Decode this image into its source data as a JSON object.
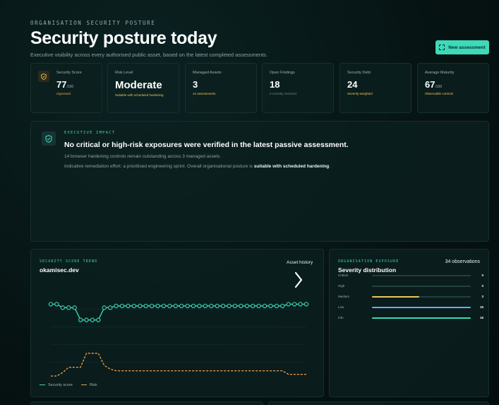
{
  "header": {
    "eyebrow": "ORGANISATION SECURITY POSTURE",
    "title": "Security posture today",
    "subtitle": "Executive visibility across every authorised public asset, based on the latest completed assessments.",
    "new_assessment_label": "New assessment"
  },
  "stats": [
    {
      "label": "Security Score",
      "value": "77",
      "unit": "/100",
      "note": "regressed"
    },
    {
      "label": "Risk Level",
      "value": "Moderate",
      "unit": "",
      "note": "Suitable with scheduled hardening"
    },
    {
      "label": "Managed Assets",
      "value": "3",
      "unit": "",
      "note": "42 assessments"
    },
    {
      "label": "Open Findings",
      "value": "18",
      "unit": "",
      "note": "0 recently resolved"
    },
    {
      "label": "Security Debt",
      "value": "24",
      "unit": "",
      "note": "Severity-weighted"
    },
    {
      "label": "Average Maturity",
      "value": "67",
      "unit": "/100",
      "note": "Observable controls"
    }
  ],
  "impact": {
    "eyebrow": "EXECUTIVE IMPACT",
    "headline": "No critical or high-risk exposures were verified in the latest passive assessment.",
    "line1": "14 browser hardening controls remain outstanding across 3 managed assets.",
    "line2_prefix": "Indicative remediation effort: a prioritised engineering sprint. Overall organisational posture is ",
    "line2_bold": "suitable with scheduled hardening",
    "line2_suffix": "."
  },
  "trend": {
    "eyebrow": "SECURITY SCORE TREND",
    "asset": "okamisec.dev",
    "history_label": "Asset history",
    "legend_score": "Security score",
    "legend_risk": "Risk"
  },
  "chart_data": {
    "type": "line",
    "title": "",
    "xlabel": "",
    "ylabel": "",
    "ylim": [
      0,
      100
    ],
    "grid": true,
    "legend": "bottom-left",
    "series": [
      {
        "name": "Security score",
        "color": "#3ed9b8",
        "marker": "circle",
        "values": [
          86,
          86,
          82,
          82,
          82,
          68,
          68,
          68,
          68,
          82,
          82,
          84,
          84,
          84,
          84,
          84,
          84,
          84,
          84,
          84,
          84,
          84,
          84,
          84,
          84,
          84,
          84,
          84,
          84,
          84,
          84,
          84,
          84,
          84,
          84,
          84,
          84,
          84,
          84,
          84,
          86,
          86,
          86,
          86
        ]
      },
      {
        "name": "Risk",
        "color": "#f5a24a",
        "marker": "none",
        "values": [
          4,
          4,
          8,
          14,
          14,
          14,
          30,
          30,
          30,
          16,
          12,
          10,
          10,
          10,
          10,
          10,
          10,
          10,
          10,
          10,
          10,
          10,
          10,
          10,
          10,
          10,
          10,
          10,
          10,
          10,
          10,
          10,
          10,
          10,
          10,
          10,
          10,
          10,
          10,
          10,
          6,
          6,
          6,
          6
        ]
      }
    ]
  },
  "exposure": {
    "eyebrow": "ORGANISATION EXPOSURE",
    "count": "34 observations",
    "title": "Severity distribution",
    "rows": [
      {
        "label": "Critical",
        "count": "0",
        "fraction": 0,
        "color": "#e85a5a"
      },
      {
        "label": "High",
        "count": "0",
        "fraction": 0,
        "color": "#f08a4a"
      },
      {
        "label": "Medium",
        "count": "3",
        "fraction": 0.48,
        "color": "#e8c659"
      },
      {
        "label": "Low",
        "count": "15",
        "fraction": 1.0,
        "color": "#6aa9f5"
      },
      {
        "label": "Info",
        "count": "16",
        "fraction": 1.0,
        "color": "#3ed9b8"
      }
    ]
  }
}
